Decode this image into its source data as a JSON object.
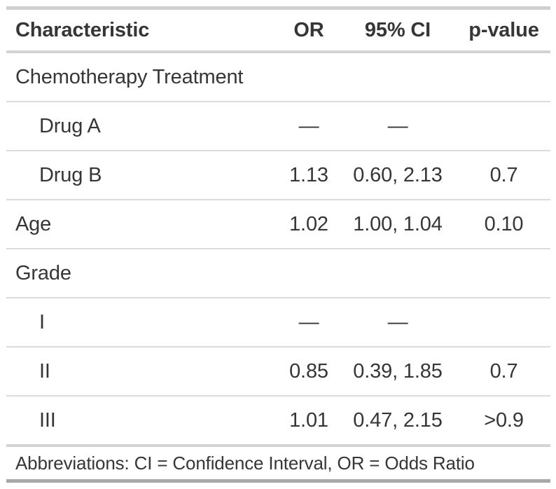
{
  "chart_data": {
    "type": "table",
    "columns": [
      "Characteristic",
      "OR",
      "95% CI",
      "p-value"
    ],
    "rows": [
      {
        "label": "Chemotherapy Treatment",
        "indent": false,
        "or": "",
        "ci": "",
        "p": ""
      },
      {
        "label": "Drug A",
        "indent": true,
        "or": "—",
        "ci": "—",
        "p": ""
      },
      {
        "label": "Drug B",
        "indent": true,
        "or": "1.13",
        "ci": "0.60, 2.13",
        "p": "0.7"
      },
      {
        "label": "Age",
        "indent": false,
        "or": "1.02",
        "ci": "1.00, 1.04",
        "p": "0.10"
      },
      {
        "label": "Grade",
        "indent": false,
        "or": "",
        "ci": "",
        "p": ""
      },
      {
        "label": "I",
        "indent": true,
        "or": "—",
        "ci": "—",
        "p": ""
      },
      {
        "label": "II",
        "indent": true,
        "or": "0.85",
        "ci": "0.39, 1.85",
        "p": "0.7"
      },
      {
        "label": "III",
        "indent": true,
        "or": "1.01",
        "ci": "0.47, 2.15",
        "p": ">0.9"
      }
    ],
    "footnote": "Abbreviations: CI = Confidence Interval, OR = Odds Ratio",
    "layout_hints": {
      "column_alignments": [
        "left",
        "center",
        "center",
        "center"
      ],
      "grid": "horizontal-rules-only"
    }
  },
  "colors": {
    "text": "#363636",
    "border_top": "#d0d0d0",
    "border_header_bottom": "#d3d3d3",
    "border_row_separator": "#dbdbdb",
    "border_table_bottom": "#a8a8a8",
    "background": "#ffffff"
  }
}
